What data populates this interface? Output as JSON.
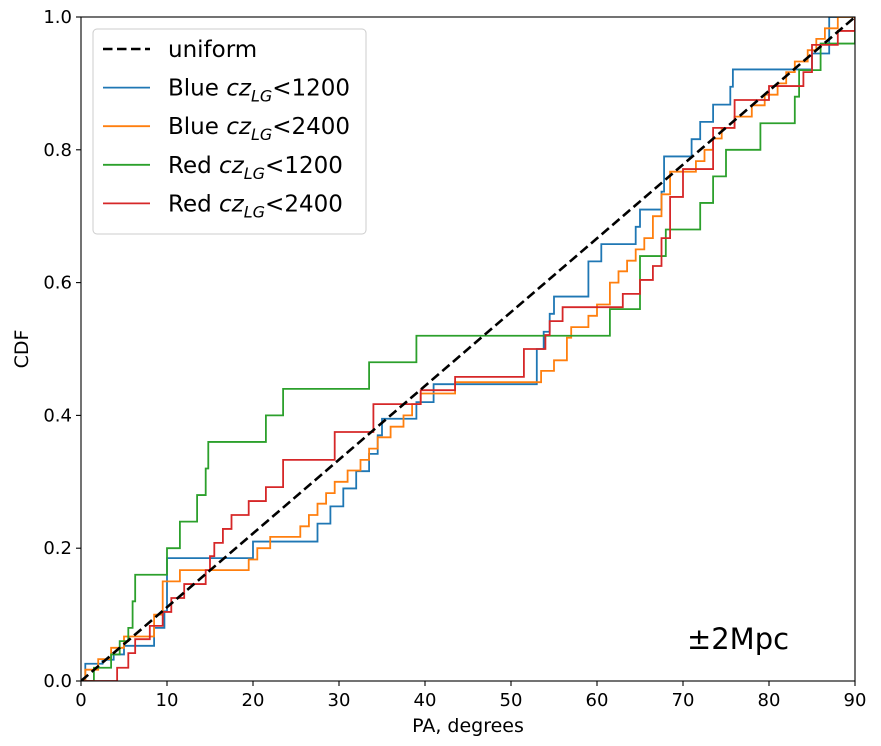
{
  "chart_data": {
    "type": "line",
    "xlabel": "PA, degrees",
    "ylabel": "CDF",
    "xlim": [
      0,
      90
    ],
    "ylim": [
      0,
      1
    ],
    "x_ticks": [
      "0",
      "10",
      "20",
      "30",
      "40",
      "50",
      "60",
      "70",
      "80",
      "90"
    ],
    "y_ticks": [
      "0.0",
      "0.2",
      "0.4",
      "0.6",
      "0.8",
      "1.0"
    ],
    "grid": false,
    "legend_placement": "top-left",
    "annotation": "±2Mpc",
    "reference": {
      "name": "uniform",
      "color": "#000000",
      "style": "dashed",
      "x": [
        0,
        90
      ],
      "y": [
        0,
        1
      ]
    },
    "series": [
      {
        "name": "Blue cz_LG<1200",
        "label_prefix": "Blue ",
        "label_var": "cz",
        "label_sub": "LG",
        "label_suffix": "<1200",
        "color": "#1f77b4",
        "style": "step",
        "x": [
          0.0,
          0.5,
          2.5,
          3.8,
          5.0,
          7.0,
          8.5,
          9.7,
          10.0,
          20.0,
          22.0,
          27.5,
          29.0,
          30.5,
          32.0,
          33.5,
          34.5,
          35.0,
          36.5,
          39.0,
          41.0,
          43.5,
          52.7,
          53.0,
          53.8,
          54.5,
          55.0,
          58.5,
          59.0,
          60.5,
          64.5,
          65.0,
          67.5,
          67.8,
          69.0,
          71.0,
          72.0,
          73.5,
          75.5,
          75.8,
          85.0,
          87.0,
          89.0,
          90.0
        ],
        "y": [
          0.0,
          0.026,
          0.032,
          0.04,
          0.053,
          0.053,
          0.08,
          0.105,
          0.185,
          0.21,
          0.21,
          0.237,
          0.263,
          0.29,
          0.316,
          0.342,
          0.37,
          0.395,
          0.395,
          0.42,
          0.447,
          0.447,
          0.447,
          0.5,
          0.526,
          0.553,
          0.579,
          0.579,
          0.632,
          0.658,
          0.684,
          0.71,
          0.737,
          0.79,
          0.79,
          0.816,
          0.842,
          0.868,
          0.895,
          0.921,
          0.945,
          1.0,
          1.0,
          1.0
        ]
      },
      {
        "name": "Blue cz_LG<2400",
        "label_prefix": "Blue ",
        "label_var": "cz",
        "label_sub": "LG",
        "label_suffix": "<2400",
        "color": "#ff7f0e",
        "style": "step",
        "x": [
          0.0,
          0.5,
          2.0,
          3.5,
          5.0,
          6.0,
          8.5,
          9.5,
          10.5,
          11.5,
          12.0,
          19.5,
          20.5,
          22.0,
          25.0,
          25.5,
          26.5,
          27.5,
          28.5,
          29.5,
          31.0,
          32.5,
          33.5,
          34.5,
          36.0,
          37.5,
          38.5,
          39.5,
          41.0,
          43.5,
          53.0,
          53.5,
          55.0,
          56.5,
          57.0,
          59.0,
          60.0,
          61.5,
          62.5,
          63.5,
          64.5,
          65.5,
          66.5,
          67.5,
          68.5,
          70.0,
          71.5,
          72.5,
          73.5,
          74.5,
          76.0,
          78.0,
          79.5,
          81.0,
          82.0,
          83.0,
          84.5,
          85.5,
          86.5,
          88.0,
          89.0,
          90.0
        ],
        "y": [
          0.0,
          0.017,
          0.033,
          0.05,
          0.067,
          0.067,
          0.1,
          0.15,
          0.15,
          0.167,
          0.167,
          0.183,
          0.2,
          0.217,
          0.217,
          0.233,
          0.25,
          0.267,
          0.283,
          0.3,
          0.317,
          0.333,
          0.35,
          0.367,
          0.383,
          0.4,
          0.417,
          0.433,
          0.433,
          0.45,
          0.45,
          0.467,
          0.483,
          0.517,
          0.533,
          0.55,
          0.567,
          0.6,
          0.617,
          0.633,
          0.65,
          0.667,
          0.7,
          0.733,
          0.767,
          0.767,
          0.783,
          0.8,
          0.817,
          0.833,
          0.85,
          0.867,
          0.883,
          0.9,
          0.917,
          0.933,
          0.95,
          0.967,
          0.983,
          1.0,
          1.0,
          1.0
        ]
      },
      {
        "name": "Red cz_LG<1200",
        "label_prefix": "Red ",
        "label_var": "cz",
        "label_sub": "LG",
        "label_suffix": "<1200",
        "color": "#2ca02c",
        "style": "step",
        "x": [
          0.0,
          1.5,
          3.5,
          4.5,
          5.5,
          6.0,
          6.3,
          6.5,
          10.0,
          11.5,
          13.5,
          14.5,
          14.8,
          21.5,
          23.5,
          33.5,
          39.0,
          52.5,
          61.5,
          65.0,
          68.0,
          72.0,
          73.5,
          75.0,
          79.0,
          80.5,
          83.0,
          83.5,
          86.0,
          88.5,
          90.0
        ],
        "y": [
          0.0,
          0.02,
          0.04,
          0.06,
          0.08,
          0.12,
          0.16,
          0.16,
          0.2,
          0.24,
          0.28,
          0.32,
          0.36,
          0.4,
          0.44,
          0.48,
          0.52,
          0.52,
          0.56,
          0.64,
          0.68,
          0.72,
          0.76,
          0.8,
          0.84,
          0.84,
          0.88,
          0.92,
          0.96,
          0.96,
          1.0
        ]
      },
      {
        "name": "Red cz_LG<2400",
        "label_prefix": "Red ",
        "label_var": "cz",
        "label_sub": "LG",
        "label_suffix": "<2400",
        "color": "#d62728",
        "style": "step",
        "x": [
          0.0,
          4.2,
          5.5,
          6.3,
          8.0,
          9.5,
          10.5,
          12.0,
          14.5,
          15.0,
          15.5,
          16.5,
          17.5,
          19.5,
          21.5,
          23.5,
          29.5,
          34.0,
          39.5,
          43.5,
          51.5,
          54.0,
          54.5,
          55.0,
          56.0,
          57.0,
          61.0,
          63.0,
          65.0,
          66.5,
          67.5,
          68.5,
          70.0,
          73.5,
          76.0,
          80.0,
          84.0,
          85.0,
          88.0,
          89.0,
          90.0
        ],
        "y": [
          0.0,
          0.02,
          0.042,
          0.063,
          0.083,
          0.104,
          0.125,
          0.146,
          0.167,
          0.188,
          0.208,
          0.229,
          0.25,
          0.271,
          0.292,
          0.333,
          0.375,
          0.417,
          0.438,
          0.458,
          0.5,
          0.521,
          0.542,
          0.542,
          0.563,
          0.563,
          0.563,
          0.583,
          0.604,
          0.625,
          0.667,
          0.729,
          0.771,
          0.833,
          0.875,
          0.896,
          0.917,
          0.958,
          0.979,
          0.979,
          1.0
        ]
      }
    ]
  }
}
